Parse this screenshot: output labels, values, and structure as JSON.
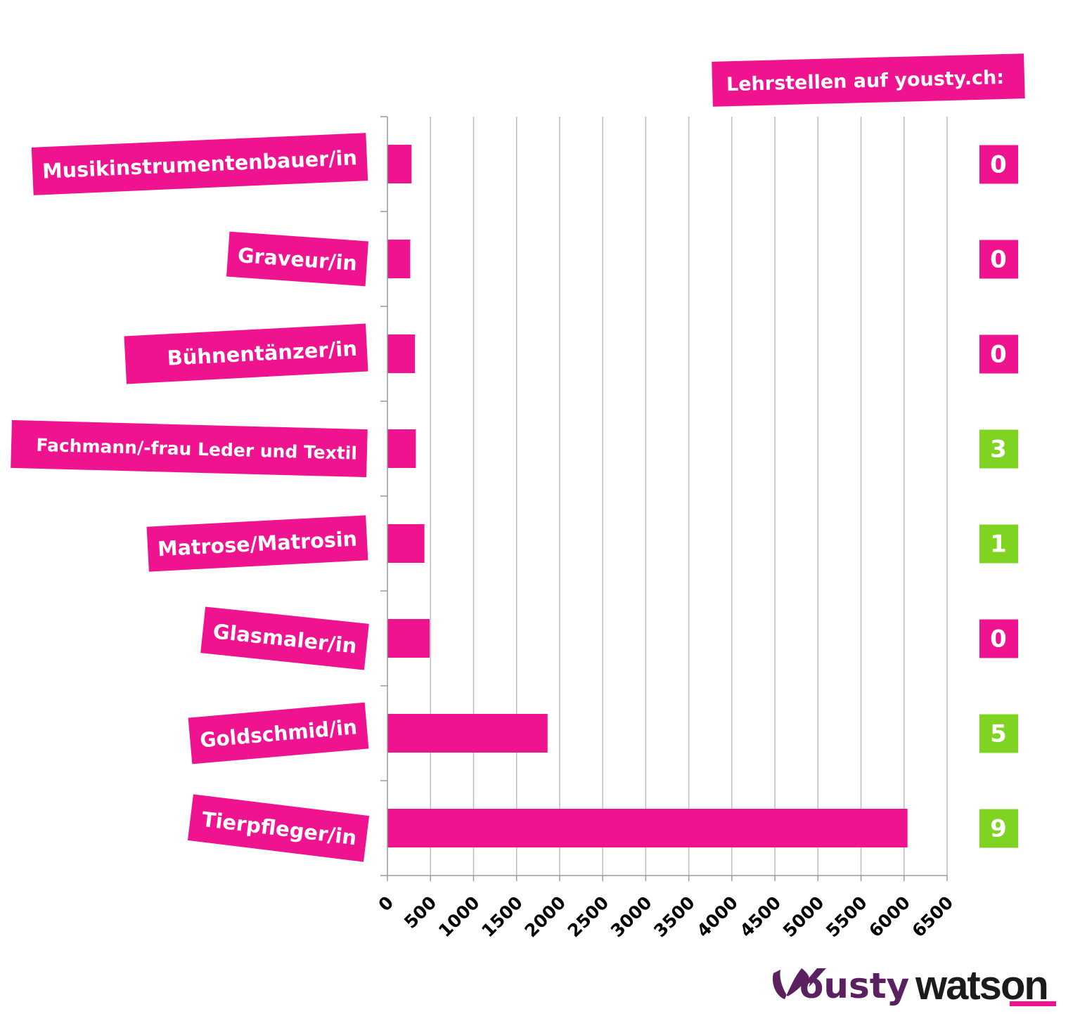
{
  "header": {
    "label": "Lehrstellen auf yousty.ch:"
  },
  "chart_data": {
    "type": "bar",
    "orientation": "horizontal",
    "categories": [
      "Musikinstrumentenbauer/in",
      "Graveur/in",
      "Bühnentänzer/in",
      "Fachmann/-frau Leder und Textil",
      "Matrose/Matrosin",
      "Glasmaler/in",
      "Goldschmid/in",
      "Tierpfleger/in"
    ],
    "values": [
      280,
      265,
      320,
      330,
      430,
      490,
      1860,
      6040
    ],
    "xlim": [
      0,
      6500
    ],
    "xticks": [
      "0",
      "500",
      "1000",
      "1500",
      "2000",
      "2500",
      "3000",
      "3500",
      "4000",
      "4500",
      "5000",
      "5500",
      "6000",
      "6500"
    ],
    "grid": true,
    "bar_color": "#f0138f",
    "counts": [
      {
        "value": "0",
        "color": "#f0138f"
      },
      {
        "value": "0",
        "color": "#f0138f"
      },
      {
        "value": "0",
        "color": "#f0138f"
      },
      {
        "value": "3",
        "color": "#7fd321"
      },
      {
        "value": "1",
        "color": "#7fd321"
      },
      {
        "value": "0",
        "color": "#f0138f"
      },
      {
        "value": "5",
        "color": "#7fd321"
      },
      {
        "value": "9",
        "color": "#7fd321"
      }
    ]
  },
  "logos": {
    "yousty": "ousty",
    "watson": "watson"
  },
  "colors": {
    "accent": "#f0138f",
    "green": "#7fd321",
    "yousty_purple": "#5b2060",
    "watson_pink": "#f0138f"
  }
}
